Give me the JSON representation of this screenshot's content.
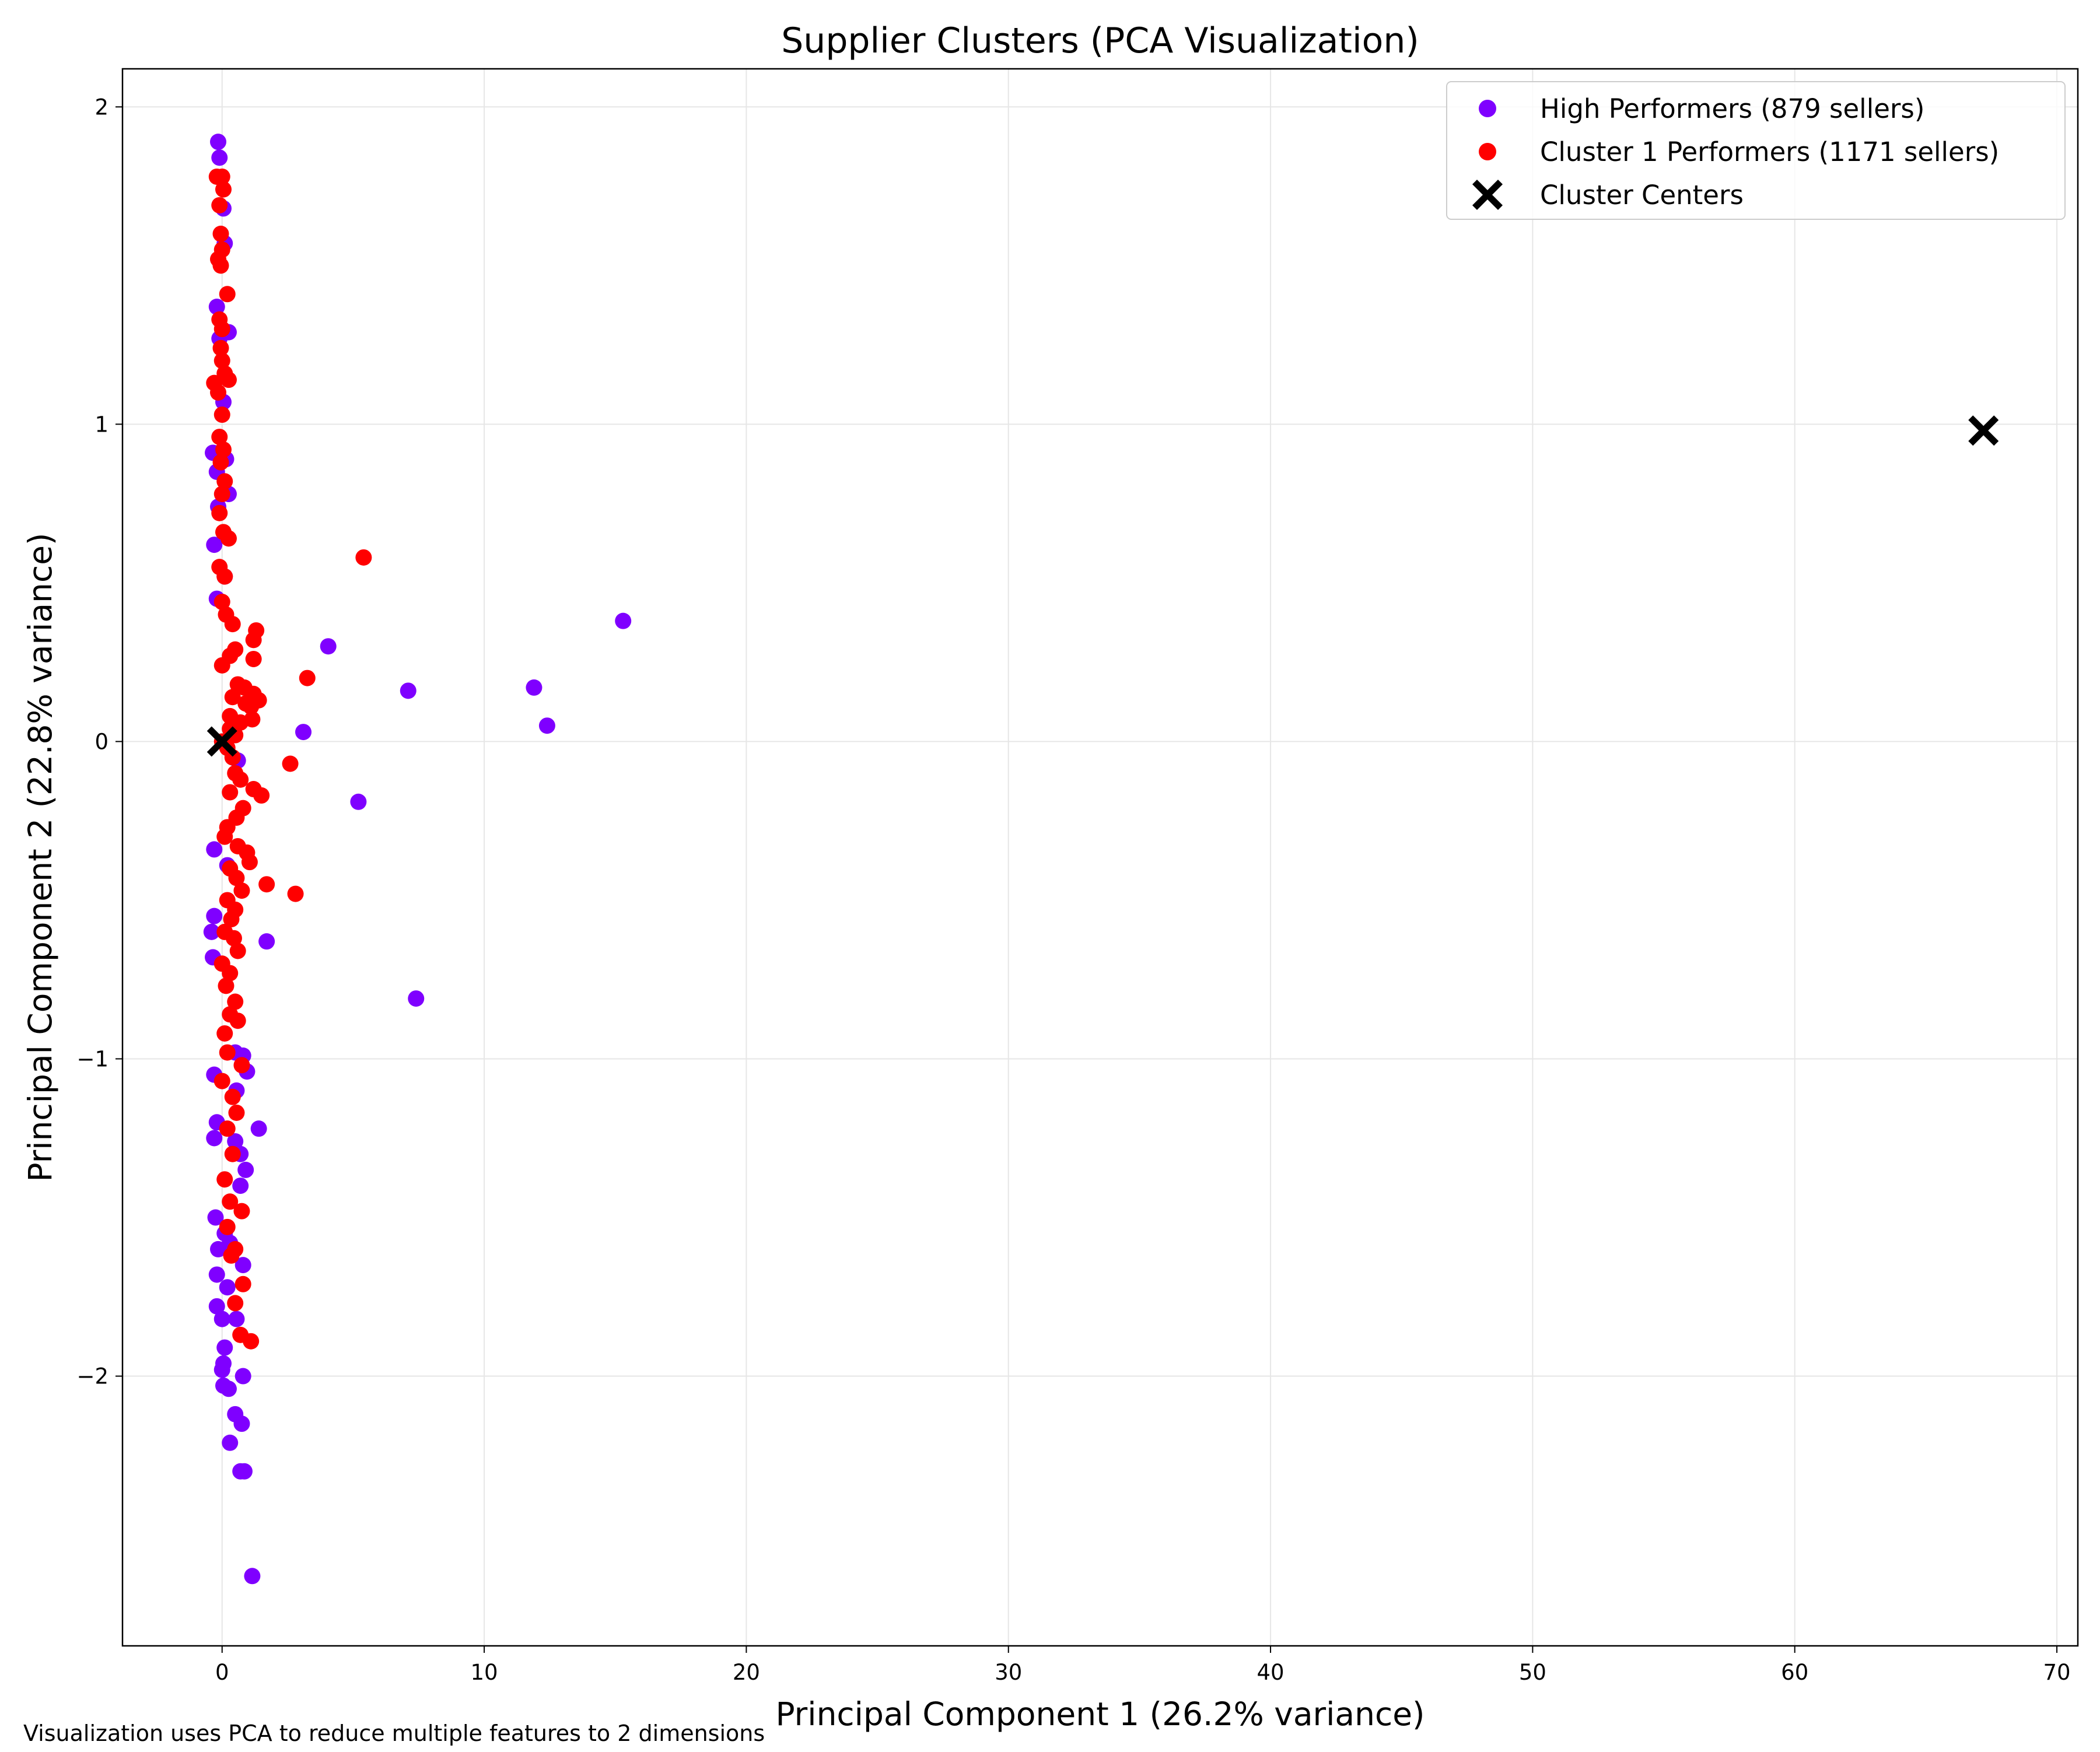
{
  "chart_data": {
    "type": "scatter",
    "title": "Supplier Clusters (PCA Visualization)",
    "xlabel": "Principal Component 1 (26.2% variance)",
    "ylabel": "Principal Component 2 (22.8% variance)",
    "xlim": [
      -3.8,
      70.8
    ],
    "ylim": [
      -2.85,
      2.12
    ],
    "x_ticks": [
      0,
      10,
      20,
      30,
      40,
      50,
      60,
      70
    ],
    "y_ticks": [
      -2,
      -1,
      0,
      1,
      2
    ],
    "x_tick_labels": [
      "0",
      "10",
      "20",
      "30",
      "40",
      "50",
      "60",
      "70"
    ],
    "y_tick_labels": [
      "−2",
      "−1",
      "0",
      "1",
      "2"
    ],
    "grid": true,
    "legend_position": "top-right",
    "footnote": "Visualization uses PCA to reduce multiple features to 2 dimensions",
    "series": [
      {
        "name": "High Performers (879 sellers)",
        "color": "#7f00ff",
        "marker": "circle",
        "points": [
          [
            -0.15,
            1.89
          ],
          [
            -0.1,
            1.84
          ],
          [
            0.05,
            1.68
          ],
          [
            0.1,
            1.57
          ],
          [
            -0.2,
            1.37
          ],
          [
            0.25,
            1.29
          ],
          [
            -0.1,
            1.27
          ],
          [
            0.05,
            1.07
          ],
          [
            -0.35,
            0.91
          ],
          [
            0.15,
            0.89
          ],
          [
            -0.2,
            0.85
          ],
          [
            0.25,
            0.78
          ],
          [
            -0.15,
            0.74
          ],
          [
            -0.3,
            0.62
          ],
          [
            0.1,
            0.52
          ],
          [
            -0.2,
            0.45
          ],
          [
            15.3,
            0.38
          ],
          [
            4.05,
            0.3
          ],
          [
            11.9,
            0.17
          ],
          [
            7.1,
            0.16
          ],
          [
            12.4,
            0.05
          ],
          [
            3.1,
            0.03
          ],
          [
            0.6,
            -0.06
          ],
          [
            -0.3,
            -0.34
          ],
          [
            0.2,
            -0.39
          ],
          [
            5.2,
            -0.19
          ],
          [
            -0.4,
            -0.6
          ],
          [
            1.7,
            -0.63
          ],
          [
            -0.35,
            -0.68
          ],
          [
            -0.3,
            -0.55
          ],
          [
            7.4,
            -0.81
          ],
          [
            0.5,
            -0.98
          ],
          [
            0.8,
            -0.99
          ],
          [
            0.95,
            -1.04
          ],
          [
            -0.3,
            -1.05
          ],
          [
            0.55,
            -1.1
          ],
          [
            -0.2,
            -1.2
          ],
          [
            1.4,
            -1.22
          ],
          [
            -0.3,
            -1.25
          ],
          [
            0.5,
            -1.26
          ],
          [
            0.7,
            -1.3
          ],
          [
            0.9,
            -1.35
          ],
          [
            0.7,
            -1.4
          ],
          [
            -0.25,
            -1.5
          ],
          [
            0.1,
            -1.55
          ],
          [
            0.3,
            -1.58
          ],
          [
            -0.15,
            -1.6
          ],
          [
            0.8,
            -1.65
          ],
          [
            -0.2,
            -1.68
          ],
          [
            0.2,
            -1.72
          ],
          [
            -0.2,
            -1.78
          ],
          [
            0.55,
            -1.82
          ],
          [
            0.0,
            -1.82
          ],
          [
            0.1,
            -1.91
          ],
          [
            0.05,
            -1.96
          ],
          [
            0.0,
            -1.98
          ],
          [
            0.8,
            -2.0
          ],
          [
            0.05,
            -2.03
          ],
          [
            0.25,
            -2.04
          ],
          [
            0.5,
            -2.12
          ],
          [
            0.75,
            -2.15
          ],
          [
            0.3,
            -2.21
          ],
          [
            0.7,
            -2.3
          ],
          [
            0.85,
            -2.3
          ],
          [
            1.15,
            -2.63
          ]
        ]
      },
      {
        "name": "Cluster 1 Performers (1171 sellers)",
        "color": "#ff0000",
        "marker": "circle",
        "points": [
          [
            -0.2,
            1.78
          ],
          [
            0.0,
            1.78
          ],
          [
            0.05,
            1.74
          ],
          [
            -0.1,
            1.69
          ],
          [
            -0.05,
            1.6
          ],
          [
            0.0,
            1.55
          ],
          [
            -0.15,
            1.52
          ],
          [
            -0.05,
            1.5
          ],
          [
            0.2,
            1.41
          ],
          [
            -0.1,
            1.33
          ],
          [
            0.0,
            1.3
          ],
          [
            -0.05,
            1.24
          ],
          [
            0.0,
            1.2
          ],
          [
            0.1,
            1.16
          ],
          [
            -0.3,
            1.13
          ],
          [
            0.25,
            1.14
          ],
          [
            -0.15,
            1.1
          ],
          [
            0.0,
            1.03
          ],
          [
            -0.1,
            0.96
          ],
          [
            0.05,
            0.92
          ],
          [
            -0.05,
            0.88
          ],
          [
            0.1,
            0.82
          ],
          [
            0.0,
            0.78
          ],
          [
            -0.1,
            0.72
          ],
          [
            0.05,
            0.66
          ],
          [
            0.25,
            0.64
          ],
          [
            5.4,
            0.58
          ],
          [
            -0.1,
            0.55
          ],
          [
            0.1,
            0.52
          ],
          [
            0.0,
            0.44
          ],
          [
            0.15,
            0.4
          ],
          [
            0.4,
            0.37
          ],
          [
            1.3,
            0.35
          ],
          [
            1.2,
            0.32
          ],
          [
            0.5,
            0.29
          ],
          [
            0.3,
            0.27
          ],
          [
            1.2,
            0.26
          ],
          [
            0.0,
            0.24
          ],
          [
            3.25,
            0.2
          ],
          [
            0.6,
            0.18
          ],
          [
            0.85,
            0.17
          ],
          [
            1.2,
            0.15
          ],
          [
            0.4,
            0.14
          ],
          [
            1.4,
            0.13
          ],
          [
            0.9,
            0.12
          ],
          [
            1.1,
            0.11
          ],
          [
            0.3,
            0.08
          ],
          [
            1.15,
            0.07
          ],
          [
            0.7,
            0.06
          ],
          [
            0.3,
            0.04
          ],
          [
            0.5,
            0.02
          ],
          [
            0.0,
            0.0
          ],
          [
            0.2,
            -0.02
          ],
          [
            0.4,
            -0.05
          ],
          [
            2.6,
            -0.07
          ],
          [
            0.5,
            -0.1
          ],
          [
            0.7,
            -0.12
          ],
          [
            1.2,
            -0.15
          ],
          [
            0.3,
            -0.16
          ],
          [
            1.5,
            -0.17
          ],
          [
            0.8,
            -0.21
          ],
          [
            0.55,
            -0.24
          ],
          [
            0.2,
            -0.27
          ],
          [
            0.1,
            -0.3
          ],
          [
            0.6,
            -0.33
          ],
          [
            0.95,
            -0.35
          ],
          [
            1.05,
            -0.38
          ],
          [
            0.3,
            -0.4
          ],
          [
            0.55,
            -0.43
          ],
          [
            1.7,
            -0.45
          ],
          [
            0.75,
            -0.47
          ],
          [
            2.8,
            -0.48
          ],
          [
            0.2,
            -0.5
          ],
          [
            0.5,
            -0.53
          ],
          [
            0.35,
            -0.56
          ],
          [
            0.1,
            -0.6
          ],
          [
            0.45,
            -0.62
          ],
          [
            0.6,
            -0.66
          ],
          [
            0.0,
            -0.7
          ],
          [
            0.3,
            -0.73
          ],
          [
            0.15,
            -0.77
          ],
          [
            0.5,
            -0.82
          ],
          [
            0.3,
            -0.86
          ],
          [
            0.6,
            -0.88
          ],
          [
            0.1,
            -0.92
          ],
          [
            0.2,
            -0.98
          ],
          [
            0.75,
            -1.02
          ],
          [
            0.0,
            -1.07
          ],
          [
            0.4,
            -1.12
          ],
          [
            0.55,
            -1.17
          ],
          [
            0.2,
            -1.22
          ],
          [
            0.4,
            -1.3
          ],
          [
            0.1,
            -1.38
          ],
          [
            0.3,
            -1.45
          ],
          [
            0.75,
            -1.48
          ],
          [
            0.2,
            -1.53
          ],
          [
            0.5,
            -1.6
          ],
          [
            0.35,
            -1.62
          ],
          [
            0.8,
            -1.71
          ],
          [
            0.5,
            -1.77
          ],
          [
            0.7,
            -1.87
          ],
          [
            1.1,
            -1.89
          ]
        ]
      },
      {
        "name": "Cluster Centers",
        "color": "#000000",
        "marker": "X",
        "points": [
          [
            0.0,
            0.0
          ],
          [
            67.2,
            0.98
          ]
        ]
      }
    ]
  }
}
